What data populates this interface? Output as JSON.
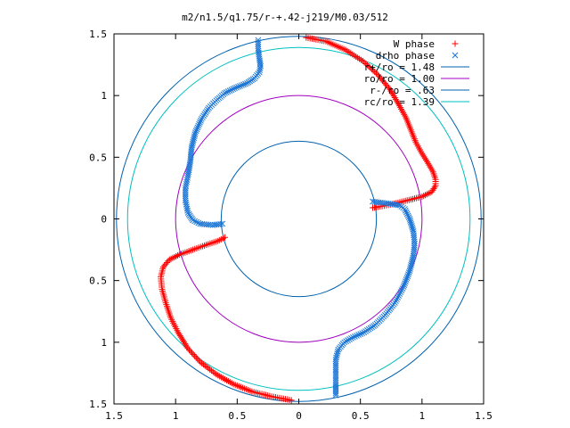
{
  "chart_data": {
    "type": "scatter",
    "title": "m2/n1.5/q1.75/r-+.42-j219/M0.03/512",
    "xlim": [
      -1.5,
      1.5
    ],
    "ylim": [
      -1.5,
      1.5
    ],
    "x_tick_values": [
      -1.5,
      -1,
      -0.5,
      0,
      0.5,
      1,
      1.5
    ],
    "x_tick_labels": [
      "1.5",
      "1",
      "0.5",
      "0",
      "0.5",
      "1",
      "1.5"
    ],
    "y_tick_values": [
      1.5,
      1,
      0.5,
      0,
      -0.5,
      -1,
      -1.5
    ],
    "y_tick_labels": [
      "1.5",
      "1",
      "0.5",
      "0",
      "0.5",
      "1",
      "1.5"
    ],
    "grid": false,
    "legend_position": "top-right",
    "circles": [
      {
        "label": "r+/ro = 1.48",
        "radius": 1.48,
        "color": "#0060ad"
      },
      {
        "label": "ro/ro = 1.00",
        "radius": 1.0,
        "color": "#a000c0"
      },
      {
        "label": "r-/ro = .63",
        "radius": 0.63,
        "color": "#0060ad"
      },
      {
        "label": "rc/ro = 1.39",
        "radius": 1.39,
        "color": "#00c0c0"
      }
    ],
    "series": [
      {
        "name": "W phase",
        "marker": "+",
        "color": "#ff0000",
        "description_points": "red plus markers tracing two spiral arms",
        "arms": [
          {
            "points": [
              [
                0.06,
                1.47
              ],
              [
                0.22,
                1.44
              ],
              [
                0.38,
                1.37
              ],
              [
                0.52,
                1.28
              ],
              [
                0.64,
                1.17
              ],
              [
                0.74,
                1.05
              ],
              [
                0.81,
                0.93
              ],
              [
                0.87,
                0.82
              ],
              [
                0.91,
                0.72
              ],
              [
                0.95,
                0.62
              ],
              [
                1.0,
                0.53
              ],
              [
                1.05,
                0.45
              ],
              [
                1.09,
                0.38
              ],
              [
                1.11,
                0.32
              ],
              [
                1.11,
                0.27
              ],
              [
                1.08,
                0.22
              ],
              [
                1.0,
                0.18
              ],
              [
                0.88,
                0.15
              ],
              [
                0.76,
                0.12
              ],
              [
                0.66,
                0.1
              ],
              [
                0.6,
                0.09
              ]
            ]
          },
          {
            "points": [
              [
                -0.6,
                -0.15
              ],
              [
                -0.66,
                -0.18
              ],
              [
                -0.75,
                -0.21
              ],
              [
                -0.86,
                -0.25
              ],
              [
                -0.97,
                -0.29
              ],
              [
                -1.05,
                -0.33
              ],
              [
                -1.1,
                -0.39
              ],
              [
                -1.12,
                -0.47
              ],
              [
                -1.11,
                -0.57
              ],
              [
                -1.08,
                -0.68
              ],
              [
                -1.04,
                -0.8
              ],
              [
                -0.98,
                -0.92
              ],
              [
                -0.9,
                -1.05
              ],
              [
                -0.8,
                -1.16
              ],
              [
                -0.67,
                -1.26
              ],
              [
                -0.53,
                -1.34
              ],
              [
                -0.38,
                -1.4
              ],
              [
                -0.22,
                -1.44
              ],
              [
                -0.06,
                -1.47
              ]
            ]
          }
        ]
      },
      {
        "name": "drho phase",
        "marker": "x",
        "color": "#1a75d6",
        "description_points": "blue cross markers tracing two spiral arms",
        "arms": [
          {
            "points": [
              [
                -0.33,
                1.45
              ],
              [
                -0.33,
                1.38
              ],
              [
                -0.32,
                1.3
              ],
              [
                -0.31,
                1.24
              ],
              [
                -0.32,
                1.19
              ],
              [
                -0.36,
                1.14
              ],
              [
                -0.42,
                1.1
              ],
              [
                -0.52,
                1.06
              ],
              [
                -0.6,
                1.02
              ],
              [
                -0.67,
                0.96
              ],
              [
                -0.73,
                0.9
              ],
              [
                -0.79,
                0.81
              ],
              [
                -0.84,
                0.7
              ],
              [
                -0.87,
                0.58
              ],
              [
                -0.88,
                0.47
              ],
              [
                -0.9,
                0.35
              ],
              [
                -0.92,
                0.25
              ],
              [
                -0.92,
                0.15
              ],
              [
                -0.9,
                0.05
              ],
              [
                -0.86,
                -0.01
              ],
              [
                -0.8,
                -0.04
              ],
              [
                -0.7,
                -0.05
              ],
              [
                -0.62,
                -0.04
              ]
            ]
          },
          {
            "points": [
              [
                0.6,
                0.14
              ],
              [
                0.68,
                0.13
              ],
              [
                0.76,
                0.12
              ],
              [
                0.82,
                0.11
              ],
              [
                0.86,
                0.08
              ],
              [
                0.9,
                0.0
              ],
              [
                0.93,
                -0.1
              ],
              [
                0.94,
                -0.2
              ],
              [
                0.93,
                -0.3
              ],
              [
                0.9,
                -0.42
              ],
              [
                0.85,
                -0.55
              ],
              [
                0.78,
                -0.68
              ],
              [
                0.7,
                -0.78
              ],
              [
                0.62,
                -0.86
              ],
              [
                0.53,
                -0.92
              ],
              [
                0.44,
                -0.96
              ],
              [
                0.37,
                -1.0
              ],
              [
                0.32,
                -1.06
              ],
              [
                0.3,
                -1.14
              ],
              [
                0.3,
                -1.24
              ],
              [
                0.3,
                -1.34
              ],
              [
                0.3,
                -1.43
              ]
            ]
          }
        ]
      }
    ]
  }
}
